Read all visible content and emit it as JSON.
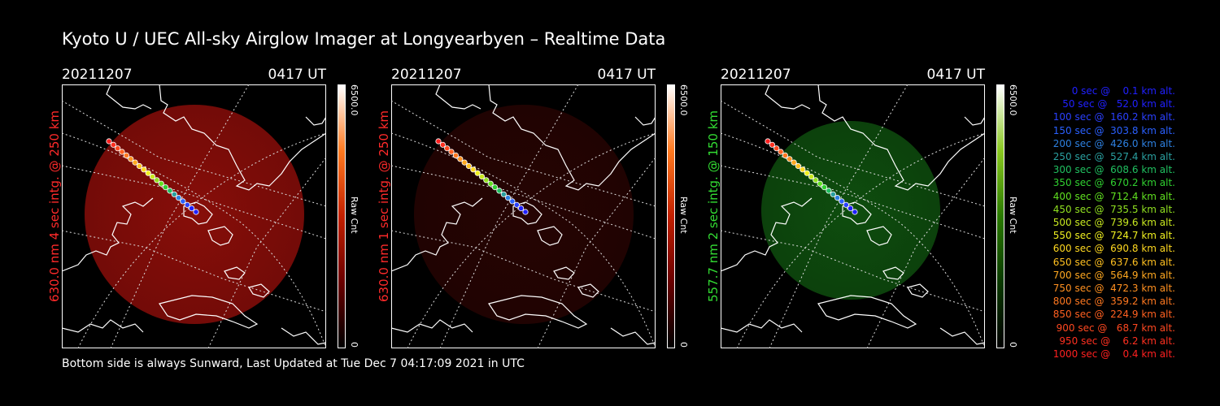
{
  "page": {
    "title": "Kyoto U / UEC All-sky Airglow Imager at Longyearbyen – Realtime Data",
    "footer": "Bottom side is always Sunward, Last Updated at Tue Dec  7 04:17:09 2021 in UTC"
  },
  "colors": {
    "background": "#000000",
    "red_label": "#ff2a2a",
    "green_label": "#33dd33",
    "coast": "#ffffff",
    "grid": "#ffffff"
  },
  "panels": [
    {
      "date": "20211207",
      "time": "0417 UT",
      "ylabel": "630.0 nm  4 sec intg. @ 250 km",
      "label_color": "#ff2a2a",
      "glow": "red",
      "glow_intensity": 0.9,
      "cbar_max": "6500.0",
      "cbar_min": "0",
      "cbar_unit": "Raw Cnt"
    },
    {
      "date": "20211207",
      "time": "0417 UT",
      "ylabel": "630.0 nm  1 sec intg. @ 250 km",
      "label_color": "#ff2a2a",
      "glow": "red",
      "glow_intensity": 0.25,
      "cbar_max": "6500.0",
      "cbar_min": "0",
      "cbar_unit": "Raw Cnt"
    },
    {
      "date": "20211207",
      "time": "0417 UT",
      "ylabel": "557.7 nm  2 sec intg. @ 150 km",
      "label_color": "#33dd33",
      "glow": "green",
      "glow_intensity": 0.7,
      "cbar_max": "6500.0",
      "cbar_min": "0",
      "cbar_unit": "Raw Cnt"
    }
  ],
  "chart_data": {
    "type": "scatter",
    "title": "Kyoto U / UEC All-sky Airglow Imager at Longyearbyen – Realtime Data",
    "xlabel": "",
    "ylabel": "",
    "trajectory": [
      {
        "t": 0,
        "alt": 0.1,
        "color": "#2020ff"
      },
      {
        "t": 50,
        "alt": 52.0,
        "color": "#2020ff"
      },
      {
        "t": 100,
        "alt": 160.2,
        "color": "#2a40ff"
      },
      {
        "t": 150,
        "alt": 303.8,
        "color": "#2a60ff"
      },
      {
        "t": 200,
        "alt": 426.0,
        "color": "#2d80e0"
      },
      {
        "t": 250,
        "alt": 527.4,
        "color": "#2aa0a0"
      },
      {
        "t": 300,
        "alt": 608.6,
        "color": "#20c060"
      },
      {
        "t": 350,
        "alt": 670.2,
        "color": "#30d030"
      },
      {
        "t": 400,
        "alt": 712.4,
        "color": "#60e020"
      },
      {
        "t": 450,
        "alt": 735.5,
        "color": "#90e020"
      },
      {
        "t": 500,
        "alt": 739.6,
        "color": "#c8e820"
      },
      {
        "t": 550,
        "alt": 724.7,
        "color": "#f0f020"
      },
      {
        "t": 600,
        "alt": 690.8,
        "color": "#ffd820"
      },
      {
        "t": 650,
        "alt": 637.6,
        "color": "#ffc020"
      },
      {
        "t": 700,
        "alt": 564.9,
        "color": "#ffa820"
      },
      {
        "t": 750,
        "alt": 472.3,
        "color": "#ff9020"
      },
      {
        "t": 800,
        "alt": 359.2,
        "color": "#ff7820"
      },
      {
        "t": 850,
        "alt": 224.9,
        "color": "#ff6020"
      },
      {
        "t": 900,
        "alt": 68.7,
        "color": "#ff4820"
      },
      {
        "t": 950,
        "alt": 6.2,
        "color": "#ff3020"
      },
      {
        "t": 1000,
        "alt": 0.4,
        "color": "#ff2020"
      }
    ]
  },
  "legend": [
    "0 sec @    0.1 km alt.",
    "50 sec @   52.0 km alt.",
    "100 sec @  160.2 km alt.",
    "150 sec @  303.8 km alt.",
    "200 sec @  426.0 km alt.",
    "250 sec @  527.4 km alt.",
    "300 sec @  608.6 km alt.",
    "350 sec @  670.2 km alt.",
    "400 sec @  712.4 km alt.",
    "450 sec @  735.5 km alt.",
    "500 sec @  739.6 km alt.",
    "550 sec @  724.7 km alt.",
    "600 sec @  690.8 km alt.",
    "650 sec @  637.6 km alt.",
    "700 sec @  564.9 km alt.",
    "750 sec @  472.3 km alt.",
    "800 sec @  359.2 km alt.",
    "850 sec @  224.9 km alt.",
    "900 sec @   68.7 km alt.",
    "950 sec @    6.2 km alt.",
    "1000 sec @    0.4 km alt."
  ]
}
